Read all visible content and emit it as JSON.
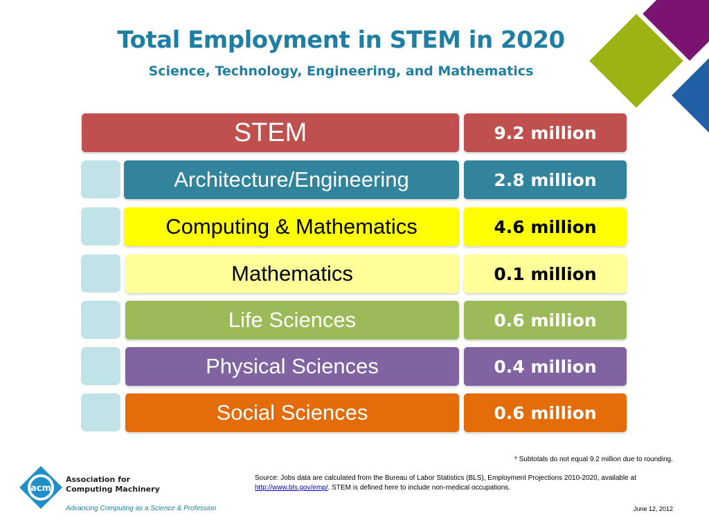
{
  "title": "Total Employment in STEM in 2020",
  "subtitle": "Science, Technology, Engineering, and Mathematics",
  "chart_data": {
    "type": "table",
    "title": "Total Employment in STEM in 2020",
    "subtitle": "Science, Technology, Engineering, and Mathematics",
    "rows": [
      {
        "category": "STEM",
        "value": 9.2,
        "unit": "million",
        "label": "9.2 million",
        "color": "#c0504d",
        "text_color": "#ffffff",
        "value_text_color": "#ffffff"
      },
      {
        "category": "Architecture/Engineering",
        "value": 2.8,
        "unit": "million",
        "label": "2.8 million",
        "color": "#31849b",
        "text_color": "#ffffff",
        "value_text_color": "#ffffff"
      },
      {
        "category": "Computing & Mathematics",
        "value": 4.6,
        "unit": "million",
        "label": "4.6 million",
        "color": "#ffff00",
        "text_color": "#000000",
        "value_text_color": "#000000"
      },
      {
        "category": "Mathematics",
        "value": 0.1,
        "unit": "million",
        "label": "0.1 million",
        "color": "#ffff99",
        "text_color": "#000000",
        "value_text_color": "#000000"
      },
      {
        "category": "Life Sciences",
        "value": 0.6,
        "unit": "million",
        "label": "0.6 million",
        "color": "#9bbb59",
        "text_color": "#ffffff",
        "value_text_color": "#ffffff"
      },
      {
        "category": "Physical Sciences",
        "value": 0.4,
        "unit": "million",
        "label": "0.4 million",
        "color": "#8064a2",
        "text_color": "#ffffff",
        "value_text_color": "#ffffff"
      },
      {
        "category": "Social Sciences",
        "value": 0.6,
        "unit": "million",
        "label": "0.6 million",
        "color": "#e36c09",
        "text_color": "#ffffff",
        "value_text_color": "#ffffff"
      }
    ]
  },
  "footnote": "* Subtotals do not equal 9.2 million due to rounding.",
  "source": {
    "prefix": "Source: Jobs data are calculated from the Bureau of Labor Statistics (BLS), Employment Projections 2010-2020, available at ",
    "link_text": "http://www.bls.gov/emp/",
    "suffix": ". STEM is defined here to include non-medical occupations."
  },
  "date": "June 12, 2012",
  "logo": {
    "mark_text": "acm",
    "name_line1": "Association for",
    "name_line2": "Computing Machinery",
    "tagline": "Advancing Computing as a Science & Profession"
  }
}
